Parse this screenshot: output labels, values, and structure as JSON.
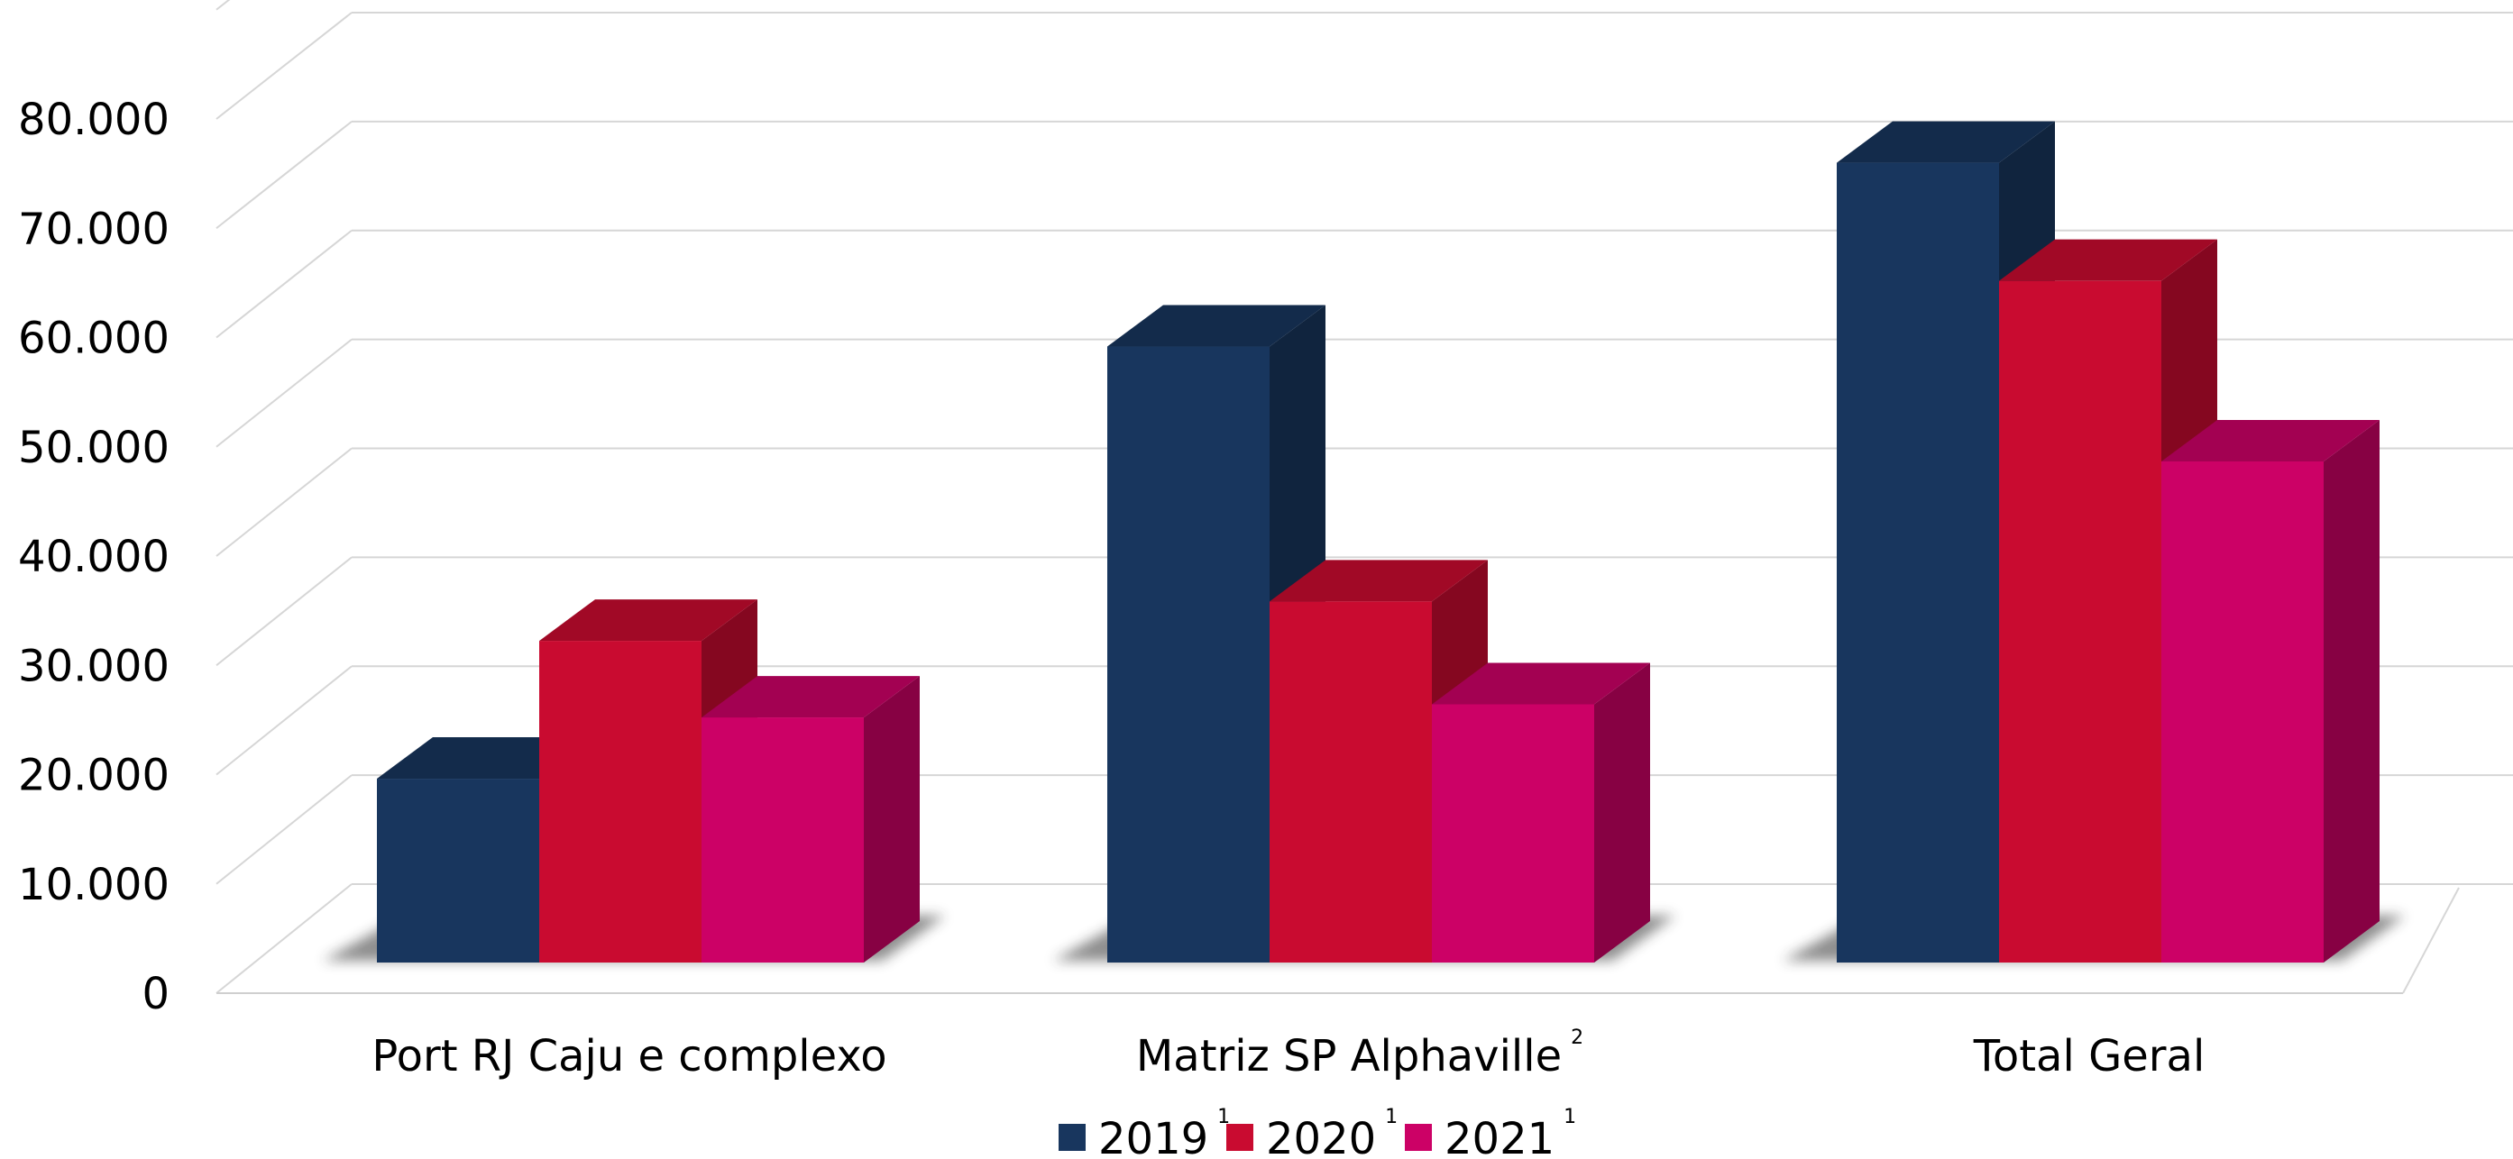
{
  "chart_data": {
    "type": "bar",
    "title": "",
    "xlabel": "",
    "ylabel": "",
    "ylim": [
      0,
      80000
    ],
    "yticks": [
      0,
      10000,
      20000,
      30000,
      40000,
      50000,
      60000,
      70000,
      80000
    ],
    "ytick_labels": [
      "0",
      "10.000",
      "20.000",
      "30.000",
      "40.000",
      "50.000",
      "60.000",
      "70.000",
      "80.000"
    ],
    "grid": true,
    "legend_position": "bottom-center",
    "categories": [
      {
        "label": "Port RJ Caju e complexo",
        "superscript": ""
      },
      {
        "label": "Matriz SP Alphaville",
        "superscript": "2"
      },
      {
        "label": "Total Geral",
        "superscript": ""
      }
    ],
    "series": [
      {
        "name": "2019",
        "superscript": "1",
        "color": "#18365e",
        "values": [
          16800,
          56300,
          73100
        ]
      },
      {
        "name": "2020",
        "superscript": "1",
        "color": "#c90b30",
        "values": [
          29400,
          33000,
          62300
        ]
      },
      {
        "name": "2021",
        "superscript": "1",
        "color": "#cc0166",
        "values": [
          22400,
          23600,
          45800
        ]
      }
    ]
  }
}
